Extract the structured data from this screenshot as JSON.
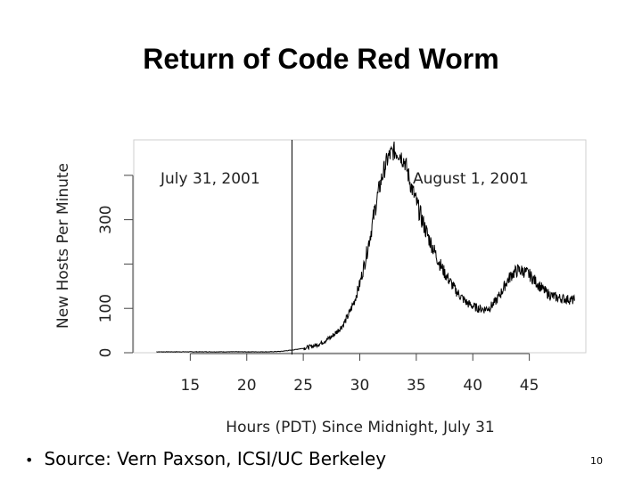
{
  "slide": {
    "title": "Return of Code Red Worm",
    "source_text": "Source: Vern Paxson, ICSI/UC Berkeley",
    "page_number": "10"
  },
  "chart_data": {
    "type": "line",
    "xlabel": "Hours (PDT) Since Midnight, July 31",
    "ylabel": "New Hosts Per Minute",
    "xlim": [
      10,
      50
    ],
    "ylim": [
      0,
      480
    ],
    "x_ticks": [
      15,
      20,
      25,
      30,
      35,
      40,
      45
    ],
    "y_ticks": [
      0,
      100,
      300
    ],
    "y_minor_ticks": [
      200,
      400
    ],
    "grid": false,
    "day_divider_x": 24,
    "annotations": [
      {
        "text": "July 31, 2001",
        "position": "top-left"
      },
      {
        "text": "August 1, 2001",
        "position": "top-right of divider"
      }
    ],
    "series": [
      {
        "x": [
          12,
          14,
          16,
          18,
          20,
          22,
          23,
          24,
          25,
          26,
          26.5,
          27,
          27.5,
          28,
          28.5,
          29,
          29.5,
          30,
          30.5,
          31,
          31.5,
          32,
          32.5,
          33,
          33.5,
          34,
          34.5,
          35,
          35.5,
          36,
          36.5,
          37,
          37.5,
          38,
          38.5,
          39,
          39.5,
          40,
          40.5,
          41,
          41.5,
          42,
          42.5,
          43,
          43.5,
          44,
          44.5,
          45,
          45.5,
          46,
          46.5,
          47,
          47.5,
          48,
          48.5,
          49
        ],
        "y": [
          2,
          2,
          2,
          2,
          2,
          2,
          3,
          6,
          10,
          16,
          21,
          28,
          36,
          48,
          62,
          85,
          115,
          155,
          210,
          275,
          345,
          400,
          440,
          455,
          450,
          430,
          380,
          340,
          300,
          265,
          235,
          205,
          180,
          160,
          140,
          125,
          112,
          105,
          100,
          98,
          102,
          115,
          135,
          160,
          178,
          186,
          184,
          176,
          162,
          148,
          136,
          128,
          124,
          122,
          120,
          118
        ]
      }
    ]
  }
}
